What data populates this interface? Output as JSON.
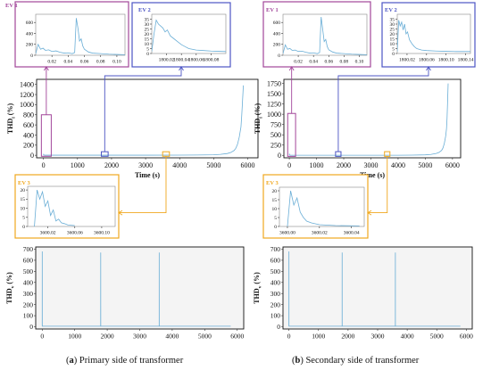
{
  "captions": {
    "a_label": "a",
    "a_text": "Primary side of transformer",
    "b_label": "b",
    "b_text": "Secondary side of transformer"
  },
  "colors": {
    "line": "#6aaed6",
    "ev1": "#a2469a",
    "ev2": "#4c55c4",
    "ev3": "#f0a81e",
    "axis": "#222222"
  },
  "chart_data": [
    {
      "id": "a-main",
      "type": "line",
      "xlabel": "Time (s)",
      "ylabel": "THD",
      "ylabel_sub": "i",
      "ylabel_unit": " (%)",
      "xlim": [
        -200,
        6300
      ],
      "ylim": [
        -50,
        1500
      ],
      "xticks": [
        0,
        1000,
        2000,
        3000,
        4000,
        5000,
        6000
      ],
      "yticks": [
        0,
        200,
        400,
        600,
        800,
        1000,
        1200,
        1400
      ],
      "grid": false,
      "x": [
        0,
        5,
        10,
        30,
        50,
        100,
        500,
        1000,
        2000,
        3000,
        4000,
        4500,
        5000,
        5200,
        5400,
        5500,
        5600,
        5650,
        5700,
        5750,
        5800,
        5820,
        5840,
        5860,
        5870
      ],
      "y": [
        8,
        25,
        5,
        3,
        2,
        2,
        2,
        2,
        2,
        2,
        3,
        5,
        10,
        18,
        35,
        55,
        95,
        140,
        220,
        360,
        560,
        760,
        1000,
        1250,
        1380
      ],
      "ev_boxes": [
        {
          "label": "EV 1",
          "x": [
            -60,
            230
          ],
          "y": [
            -20,
            800
          ]
        },
        {
          "label": "EV 2",
          "x": [
            1700,
            1900
          ],
          "y": [
            -20,
            70
          ]
        },
        {
          "label": "EV 3",
          "x": [
            3500,
            3700
          ],
          "y": [
            -20,
            70
          ]
        }
      ]
    },
    {
      "id": "a-ev1",
      "type": "line",
      "title": "EV 1",
      "xlim": [
        0,
        0.11
      ],
      "ylim": [
        0,
        750
      ],
      "xticks": [
        0.02,
        0.04,
        0.06,
        0.08,
        0.1
      ],
      "xticklabels": [
        "0.02",
        "0.04",
        "0.06",
        "0.08",
        "0.10"
      ],
      "yticks": [
        0,
        200,
        400,
        600
      ],
      "x": [
        0,
        0.003,
        0.006,
        0.009,
        0.012,
        0.016,
        0.02,
        0.025,
        0.03,
        0.035,
        0.04,
        0.045,
        0.048,
        0.05,
        0.052,
        0.054,
        0.056,
        0.058,
        0.06,
        0.065,
        0.07,
        0.08,
        0.09,
        0.1,
        0.11
      ],
      "y": [
        30,
        200,
        110,
        130,
        90,
        100,
        70,
        80,
        55,
        40,
        45,
        30,
        50,
        680,
        500,
        260,
        300,
        170,
        110,
        60,
        40,
        30,
        20,
        15,
        10
      ]
    },
    {
      "id": "a-ev2",
      "type": "line",
      "title": "EV 2",
      "xlim": [
        1800.0,
        1800.1
      ],
      "ylim": [
        0,
        40
      ],
      "xticks": [
        1800.02,
        1800.04,
        1800.06,
        1800.08
      ],
      "xticklabels": [
        "1800.02",
        "1800.04",
        "1800.06",
        "1800.08"
      ],
      "yticks": [
        0,
        5,
        10,
        15,
        20,
        25,
        30,
        35
      ],
      "x": [
        1800.0,
        1800.003,
        1800.006,
        1800.009,
        1800.012,
        1800.015,
        1800.018,
        1800.021,
        1800.025,
        1800.03,
        1800.035,
        1800.04,
        1800.045,
        1800.05,
        1800.06,
        1800.07,
        1800.08,
        1800.09,
        1800.1
      ],
      "y": [
        2,
        20,
        34,
        30,
        28,
        26,
        22,
        24,
        18,
        15,
        12,
        9,
        7,
        5,
        3.5,
        3,
        2.5,
        2.2,
        2
      ]
    },
    {
      "id": "a-ev3",
      "type": "line",
      "title": "EV 3",
      "xlim": [
        3599.99,
        3600.12
      ],
      "ylim": [
        0,
        22
      ],
      "xticks": [
        3600.02,
        3600.06,
        3600.1
      ],
      "xticklabels": [
        "3600.02",
        "3600.06",
        "3600.10"
      ],
      "yticks": [
        0,
        5,
        10,
        15,
        20
      ],
      "x": [
        3600.0,
        3600.004,
        3600.008,
        3600.012,
        3600.016,
        3600.02,
        3600.024,
        3600.028,
        3600.032,
        3600.036,
        3600.04,
        3600.045,
        3600.05,
        3600.06
      ],
      "y": [
        0,
        20,
        15,
        19,
        11,
        14,
        6,
        9,
        3,
        4,
        2,
        1.5,
        0.8,
        0.5
      ]
    },
    {
      "id": "a-bottom",
      "type": "line",
      "xlabel": "",
      "ylabel": "THD",
      "ylabel_sub": "v",
      "ylabel_unit": " (%)",
      "xlim": [
        -200,
        6200
      ],
      "ylim": [
        -20,
        720
      ],
      "xticks": [
        0,
        1000,
        2000,
        3000,
        4000,
        5000,
        6000
      ],
      "yticks": [
        0,
        100,
        200,
        300,
        400,
        500,
        600,
        700
      ],
      "grid": false,
      "x": [
        0,
        1,
        2,
        3,
        1799,
        1800,
        1801,
        1802,
        3599,
        3600,
        3601,
        3602,
        5800
      ],
      "y": [
        5,
        680,
        5,
        5,
        5,
        670,
        5,
        5,
        5,
        670,
        5,
        5,
        5
      ]
    },
    {
      "id": "b-main",
      "type": "line",
      "xlabel": "Time (s)",
      "ylabel": "THD",
      "ylabel_sub": "i",
      "ylabel_unit": " (%)",
      "xlim": [
        -200,
        6300
      ],
      "ylim": [
        -60,
        1850
      ],
      "xticks": [
        0,
        1000,
        2000,
        3000,
        4000,
        5000,
        6000
      ],
      "yticks": [
        0,
        250,
        500,
        750,
        1000,
        1250,
        1500,
        1750
      ],
      "grid": false,
      "x": [
        0,
        5,
        10,
        30,
        50,
        100,
        500,
        1000,
        2000,
        3000,
        4000,
        4500,
        5000,
        5200,
        5400,
        5500,
        5600,
        5650,
        5700,
        5750,
        5780,
        5800,
        5820,
        5840
      ],
      "y": [
        10,
        40,
        6,
        3,
        2,
        2,
        2,
        2,
        2,
        2,
        3,
        5,
        12,
        22,
        45,
        70,
        120,
        180,
        290,
        470,
        650,
        900,
        1300,
        1750
      ],
      "ev_boxes": [
        {
          "label": "EV 1",
          "x": [
            -60,
            230
          ],
          "y": [
            -25,
            1020
          ]
        },
        {
          "label": "EV 2",
          "x": [
            1700,
            1900
          ],
          "y": [
            -25,
            90
          ]
        },
        {
          "label": "EV 3",
          "x": [
            3500,
            3700
          ],
          "y": [
            -25,
            90
          ]
        }
      ]
    },
    {
      "id": "b-ev1",
      "type": "line",
      "title": "EV 1",
      "xlim": [
        0,
        0.11
      ],
      "ylim": [
        0,
        750
      ],
      "xticks": [
        0.02,
        0.04,
        0.06,
        0.08,
        0.1
      ],
      "xticklabels": [
        "0.02",
        "0.04",
        "0.06",
        "0.08",
        "0.10"
      ],
      "yticks": [
        0,
        200,
        400,
        600
      ],
      "x": [
        0,
        0.003,
        0.006,
        0.009,
        0.012,
        0.016,
        0.02,
        0.025,
        0.03,
        0.035,
        0.04,
        0.045,
        0.048,
        0.05,
        0.052,
        0.054,
        0.056,
        0.058,
        0.06,
        0.065,
        0.07,
        0.08,
        0.09,
        0.1,
        0.11
      ],
      "y": [
        30,
        190,
        110,
        125,
        90,
        95,
        70,
        75,
        55,
        40,
        45,
        30,
        50,
        700,
        480,
        250,
        290,
        160,
        100,
        60,
        40,
        30,
        20,
        15,
        10
      ]
    },
    {
      "id": "b-ev2",
      "type": "line",
      "title": "EV 2",
      "xlim": [
        1800.0,
        1800.15
      ],
      "ylim": [
        0,
        40
      ],
      "xticks": [
        1800.02,
        1800.06,
        1800.1,
        1800.14
      ],
      "xticklabels": [
        "1800.02",
        "1800.06",
        "1800.10",
        "1800.14"
      ],
      "yticks": [
        0,
        5,
        10,
        15,
        20,
        25,
        30,
        35
      ],
      "x": [
        1800.0,
        1800.003,
        1800.006,
        1800.009,
        1800.012,
        1800.015,
        1800.018,
        1800.021,
        1800.025,
        1800.03,
        1800.035,
        1800.04,
        1800.05,
        1800.06,
        1800.08,
        1800.1,
        1800.12,
        1800.15
      ],
      "y": [
        2,
        34,
        28,
        32,
        24,
        30,
        20,
        22,
        14,
        10,
        7,
        5,
        3.5,
        3,
        2.5,
        2.2,
        2,
        2
      ]
    },
    {
      "id": "b-ev3",
      "type": "line",
      "title": "EV 3",
      "xlim": [
        3599.995,
        3600.048
      ],
      "ylim": [
        0,
        22
      ],
      "xticks": [
        3600.0,
        3600.02,
        3600.04
      ],
      "xticklabels": [
        "3600.00",
        "3600.02",
        "3600.04"
      ],
      "yticks": [
        0,
        5,
        10,
        15,
        20
      ],
      "x": [
        3600.0,
        3600.002,
        3600.004,
        3600.006,
        3600.008,
        3600.01,
        3600.012,
        3600.015,
        3600.02,
        3600.03,
        3600.045
      ],
      "y": [
        0,
        20,
        12,
        16,
        8,
        5,
        3,
        2,
        1,
        0.5,
        0.3
      ]
    },
    {
      "id": "b-bottom",
      "type": "line",
      "xlabel": "",
      "ylabel": "THD",
      "ylabel_sub": "v",
      "ylabel_unit": " (%)",
      "xlim": [
        -200,
        6200
      ],
      "ylim": [
        -20,
        720
      ],
      "xticks": [
        0,
        1000,
        2000,
        3000,
        4000,
        5000,
        6000
      ],
      "yticks": [
        0,
        100,
        200,
        300,
        400,
        500,
        600,
        700
      ],
      "grid": false,
      "x": [
        0,
        1,
        2,
        3,
        1799,
        1800,
        1801,
        1802,
        3599,
        3600,
        3601,
        3602,
        5800
      ],
      "y": [
        5,
        680,
        5,
        5,
        5,
        670,
        5,
        5,
        5,
        670,
        5,
        5,
        5
      ]
    }
  ]
}
